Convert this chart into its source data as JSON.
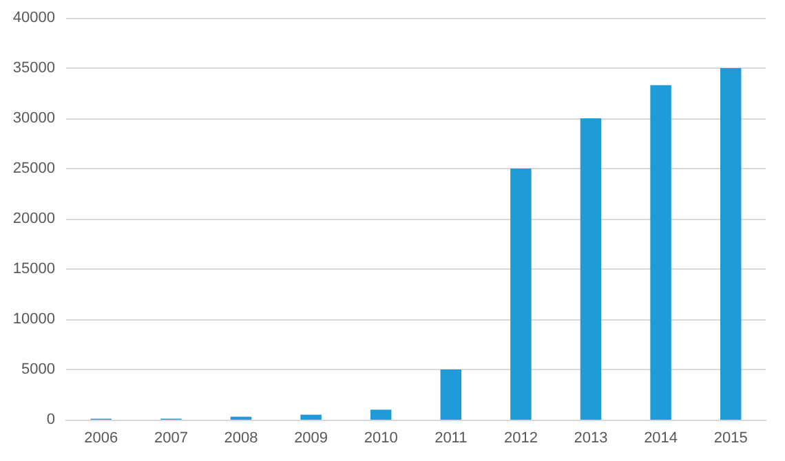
{
  "chart_data": {
    "type": "bar",
    "categories": [
      "2006",
      "2007",
      "2008",
      "2009",
      "2010",
      "2011",
      "2012",
      "2013",
      "2014",
      "2015"
    ],
    "values": [
      100,
      100,
      300,
      500,
      1000,
      5000,
      25000,
      30000,
      33300,
      35000
    ],
    "color": "#1f9bd7",
    "ylim": [
      0,
      40000
    ],
    "yticks": [
      0,
      5000,
      10000,
      15000,
      20000,
      25000,
      30000,
      35000,
      40000
    ],
    "grid": "y"
  }
}
